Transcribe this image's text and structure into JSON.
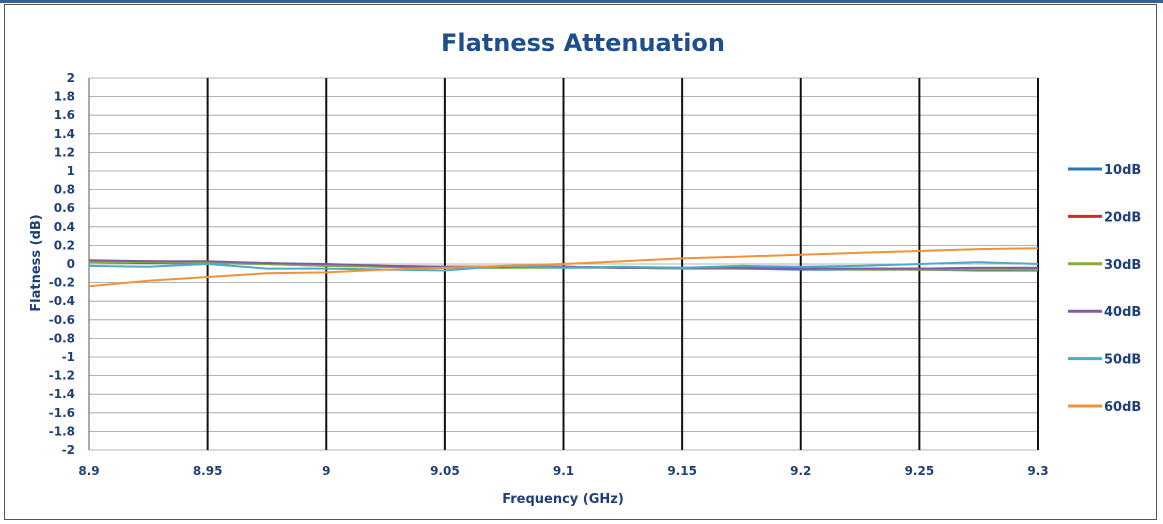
{
  "chart_data": {
    "type": "line",
    "title": "Flatness Attenuation",
    "xlabel": "Frequency (GHz)",
    "ylabel": "Flatness (dB)",
    "xlim": [
      8.9,
      9.3
    ],
    "ylim": [
      -2,
      2
    ],
    "xticks": [
      "8.9",
      "8.95",
      "9",
      "9.05",
      "9.1",
      "9.15",
      "9.2",
      "9.25",
      "9.3"
    ],
    "yticks": [
      "2",
      "1.8",
      "1.6",
      "1.4",
      "1.2",
      "1",
      "0.8",
      "0.6",
      "0.4",
      "0.2",
      "0",
      "-0.2",
      "-0.4",
      "-0.6",
      "-0.8",
      "-1",
      "-1.2",
      "-1.4",
      "-1.6",
      "-1.8",
      "-2"
    ],
    "grid": true,
    "legend_position": "right",
    "x": [
      8.9,
      8.925,
      8.95,
      8.975,
      9.0,
      9.025,
      9.05,
      9.075,
      9.1,
      9.125,
      9.15,
      9.175,
      9.2,
      9.225,
      9.25,
      9.275,
      9.3
    ],
    "series": [
      {
        "name": "10dB",
        "color": "#2e75b6",
        "values": [
          0.02,
          0.01,
          0.01,
          0.0,
          -0.02,
          -0.03,
          -0.04,
          -0.04,
          -0.03,
          -0.04,
          -0.05,
          -0.05,
          -0.06,
          -0.06,
          -0.06,
          -0.07,
          -0.07
        ]
      },
      {
        "name": "20dB",
        "color": "#d62728",
        "values": [
          0.03,
          0.03,
          0.02,
          0.01,
          -0.01,
          -0.02,
          -0.03,
          -0.03,
          -0.03,
          -0.04,
          -0.04,
          -0.05,
          -0.05,
          -0.05,
          -0.05,
          -0.05,
          -0.05
        ]
      },
      {
        "name": "30dB",
        "color": "#8caa3c",
        "values": [
          0.02,
          0.02,
          0.01,
          0.0,
          -0.02,
          -0.03,
          -0.03,
          -0.04,
          -0.04,
          -0.04,
          -0.05,
          -0.05,
          -0.05,
          -0.06,
          -0.06,
          -0.06,
          -0.06
        ]
      },
      {
        "name": "40dB",
        "color": "#7b5ea7",
        "values": [
          0.04,
          0.03,
          0.03,
          0.01,
          0.0,
          -0.02,
          -0.03,
          -0.03,
          -0.03,
          -0.04,
          -0.04,
          -0.04,
          -0.05,
          -0.05,
          -0.05,
          -0.04,
          -0.04
        ]
      },
      {
        "name": "50dB",
        "color": "#4bacc6",
        "values": [
          -0.02,
          -0.03,
          0.0,
          -0.05,
          -0.05,
          -0.06,
          -0.07,
          -0.02,
          -0.04,
          -0.03,
          -0.04,
          -0.02,
          -0.03,
          -0.02,
          0.0,
          0.02,
          0.0
        ]
      },
      {
        "name": "60dB",
        "color": "#f0923a",
        "values": [
          -0.24,
          -0.18,
          -0.14,
          -0.1,
          -0.09,
          -0.06,
          -0.04,
          -0.02,
          0.0,
          0.03,
          0.06,
          0.08,
          0.1,
          0.12,
          0.14,
          0.16,
          0.17
        ]
      }
    ]
  }
}
